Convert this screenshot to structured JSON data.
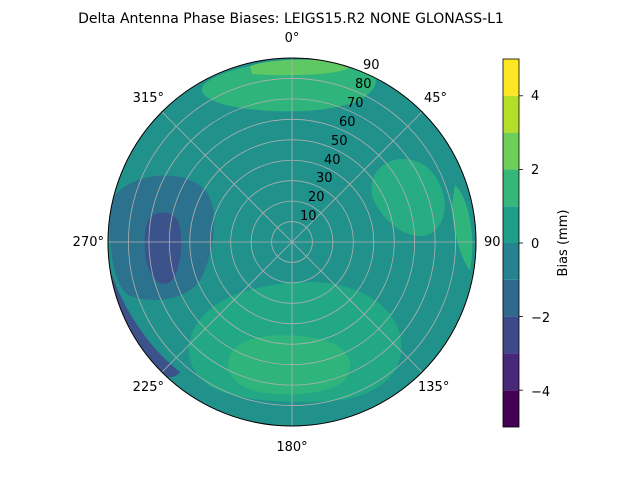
{
  "chart_data": {
    "type": "heatmap",
    "projection": "polar",
    "title": "Delta Antenna Phase Biases: LEIGS15.R2      NONE GLONASS-L1",
    "azimuth_tick_labels": [
      "0°",
      "45°",
      "90",
      "135°",
      "180°",
      "225°",
      "270°",
      "315°"
    ],
    "radial_tick_labels": [
      "10",
      "20",
      "30",
      "40",
      "50",
      "60",
      "70",
      "80",
      "90"
    ],
    "radial_range": [
      0,
      90
    ],
    "theta_zero": "N",
    "theta_direction": "clockwise",
    "grid": true,
    "colorbar": {
      "label": "Bias (mm)",
      "ticks": [
        "−4",
        "−2",
        "0",
        "2",
        "4"
      ],
      "range": [
        -5,
        5
      ],
      "levels": [
        -5,
        -4.5,
        -4,
        -3.5,
        -3,
        -2.5,
        -2,
        -1.5,
        -1,
        -0.5,
        0,
        0.5,
        1,
        1.5,
        2,
        2.5,
        3,
        3.5,
        4,
        4.5,
        5
      ],
      "colormap": "viridis"
    },
    "background_band": [
      0,
      0.5
    ],
    "regions": [
      {
        "feature": "ring-high-north",
        "az_range": [
          330,
          40
        ],
        "elev_range": [
          70,
          90
        ],
        "band": [
          1.5,
          2.5
        ]
      },
      {
        "feature": "plateau-south",
        "az_range": [
          150,
          225
        ],
        "elev_range": [
          30,
          90
        ],
        "band": [
          1.0,
          2.0
        ]
      },
      {
        "feature": "peak-south",
        "az_range": [
          165,
          200
        ],
        "elev_range": [
          30,
          50
        ],
        "band": [
          2.0,
          3.0
        ]
      },
      {
        "feature": "low-west",
        "az_range": [
          255,
          300
        ],
        "elev_range": [
          10,
          60
        ],
        "band": [
          -1.5,
          -0.5
        ]
      },
      {
        "feature": "min-west",
        "az_range": [
          262,
          283
        ],
        "elev_range": [
          25,
          35
        ],
        "band": [
          -2.5,
          -2.0
        ]
      },
      {
        "feature": "edge-low-southwest",
        "az_range": [
          235,
          265
        ],
        "elev_range": [
          85,
          90
        ],
        "band": [
          -2.0,
          -1.0
        ]
      },
      {
        "feature": "high-east",
        "az_range": [
          60,
          110
        ],
        "elev_range": [
          20,
          90
        ],
        "band": [
          0.5,
          1.5
        ]
      }
    ]
  }
}
